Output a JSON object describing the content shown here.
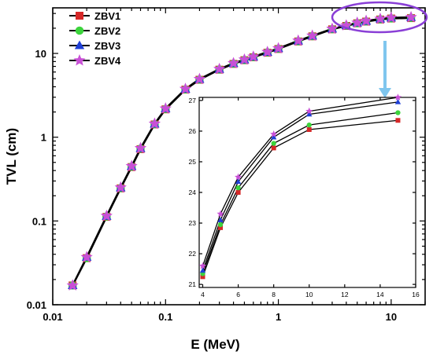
{
  "chart_data": [
    {
      "type": "line",
      "title": "",
      "xlabel": "E (MeV)",
      "ylabel": "TVL (cm)",
      "x_scale": "log",
      "y_scale": "log",
      "xlim": [
        0.01,
        20
      ],
      "ylim": [
        0.01,
        35
      ],
      "x_ticks": [
        "0.01",
        "0.1",
        "1",
        "10"
      ],
      "y_ticks": [
        "0.01",
        "0.1",
        "1",
        "10"
      ],
      "legend": "top-left",
      "x": [
        0.015,
        0.02,
        0.03,
        0.04,
        0.05,
        0.06,
        0.08,
        0.1,
        0.15,
        0.2,
        0.3,
        0.4,
        0.5,
        0.6,
        0.8,
        1,
        1.5,
        2,
        3,
        4,
        5,
        6,
        8,
        10,
        15
      ],
      "series": [
        {
          "name": "ZBV1",
          "color": "#d62828",
          "marker": "square",
          "values": [
            0.017,
            0.036,
            0.112,
            0.245,
            0.44,
            0.72,
            1.42,
            2.15,
            3.7,
            4.85,
            6.4,
            7.5,
            8.3,
            9.0,
            10.2,
            11.3,
            13.9,
            16.0,
            19.4,
            21.3,
            22.9,
            24.0,
            25.4,
            26.1,
            26.4
          ]
        },
        {
          "name": "ZBV2",
          "color": "#3cd43c",
          "marker": "circle",
          "values": [
            0.017,
            0.036,
            0.113,
            0.247,
            0.445,
            0.73,
            1.43,
            2.17,
            3.72,
            4.88,
            6.44,
            7.55,
            8.35,
            9.05,
            10.3,
            11.4,
            14.0,
            16.1,
            19.5,
            21.4,
            23.0,
            24.1,
            25.6,
            26.2,
            26.6
          ]
        },
        {
          "name": "ZBV3",
          "color": "#1f3fd6",
          "marker": "triangle",
          "values": [
            0.017,
            0.037,
            0.114,
            0.249,
            0.448,
            0.735,
            1.44,
            2.19,
            3.75,
            4.92,
            6.48,
            7.6,
            8.4,
            9.1,
            10.35,
            11.45,
            14.1,
            16.2,
            19.6,
            21.5,
            23.2,
            24.3,
            25.8,
            26.6,
            26.95
          ]
        },
        {
          "name": "ZBV4",
          "color": "#c850d6",
          "marker": "star",
          "values": [
            0.017,
            0.037,
            0.115,
            0.251,
            0.452,
            0.74,
            1.45,
            2.2,
            3.77,
            4.95,
            6.52,
            7.65,
            8.45,
            9.15,
            10.4,
            11.5,
            14.2,
            16.3,
            19.7,
            21.6,
            23.3,
            24.5,
            25.9,
            26.7,
            27.1
          ]
        }
      ]
    },
    {
      "type": "line",
      "title": "",
      "xlabel": "",
      "ylabel": "",
      "xlim": [
        3.8,
        16
      ],
      "ylim": [
        20.9,
        27.1
      ],
      "x_ticks": [
        "4",
        "6",
        "8",
        "10",
        "12",
        "14",
        "16"
      ],
      "y_ticks": [
        "21",
        "22",
        "23",
        "24",
        "25",
        "26",
        "27"
      ],
      "x": [
        4,
        5,
        6,
        8,
        10,
        15
      ],
      "series": [
        {
          "name": "ZBV1",
          "color": "#d62828",
          "marker": "square",
          "values": [
            21.25,
            22.85,
            24.0,
            25.45,
            26.05,
            26.35
          ]
        },
        {
          "name": "ZBV2",
          "color": "#3cd43c",
          "marker": "circle",
          "values": [
            21.35,
            22.95,
            24.15,
            25.6,
            26.2,
            26.6
          ]
        },
        {
          "name": "ZBV3",
          "color": "#1f3fd6",
          "marker": "triangle",
          "values": [
            21.45,
            23.1,
            24.35,
            25.8,
            26.55,
            26.95
          ]
        },
        {
          "name": "ZBV4",
          "color": "#c850d6",
          "marker": "star",
          "values": [
            21.6,
            23.3,
            24.5,
            25.9,
            26.65,
            27.1
          ]
        }
      ]
    }
  ],
  "annotation": {
    "ellipse_color": "#8a3fd6",
    "arrow_color": "#7fc6ee"
  }
}
